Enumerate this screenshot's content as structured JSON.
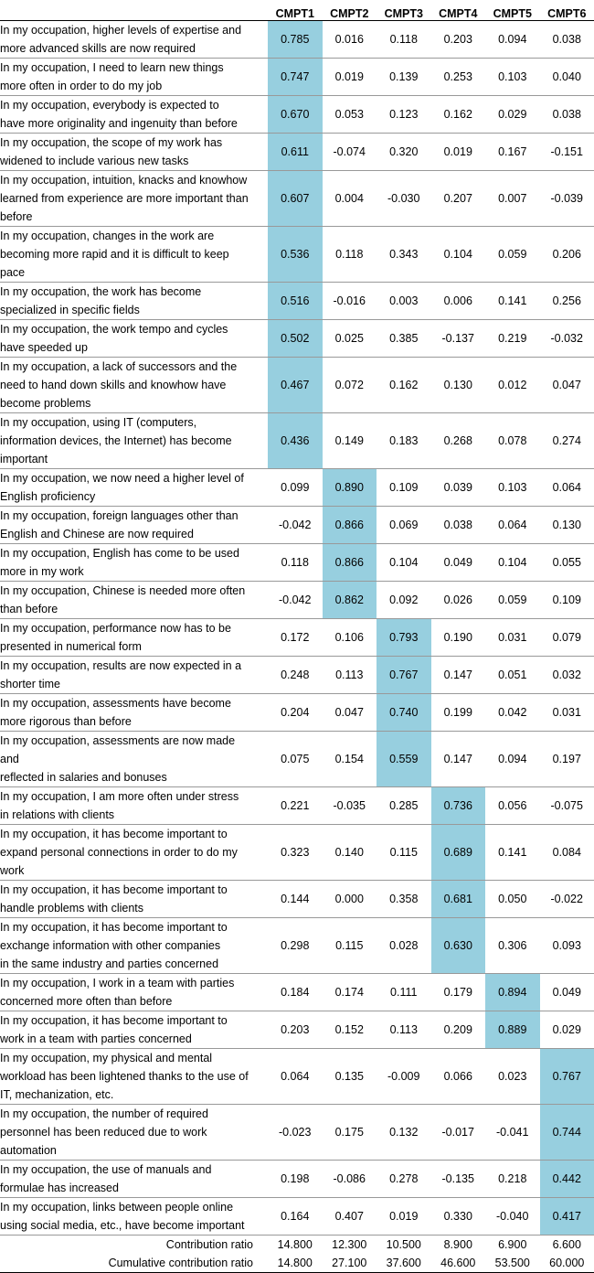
{
  "table": {
    "columns": [
      "CMPT1",
      "CMPT2",
      "CMPT3",
      "CMPT4",
      "CMPT5",
      "CMPT6"
    ],
    "rows": [
      {
        "label": [
          "In my occupation, higher levels of expertise and",
          "more advanced skills are now required"
        ],
        "values": [
          "0.785",
          "0.016",
          "0.118",
          "0.203",
          "0.094",
          "0.038"
        ],
        "highlight": 0
      },
      {
        "label": [
          "In my occupation, I need to learn new things",
          "more often in order to do my job"
        ],
        "values": [
          "0.747",
          "0.019",
          "0.139",
          "0.253",
          "0.103",
          "0.040"
        ],
        "highlight": 0
      },
      {
        "label": [
          "In my occupation, everybody is expected to",
          "have more originality and ingenuity than before"
        ],
        "values": [
          "0.670",
          "0.053",
          "0.123",
          "0.162",
          "0.029",
          "0.038"
        ],
        "highlight": 0
      },
      {
        "label": [
          "In my occupation, the scope of my work has",
          "widened to include various new tasks"
        ],
        "values": [
          "0.611",
          "-0.074",
          "0.320",
          "0.019",
          "0.167",
          "-0.151"
        ],
        "highlight": 0
      },
      {
        "label": [
          "In my occupation, intuition, knacks and knowhow",
          "learned from experience are more important than",
          "before"
        ],
        "values": [
          "0.607",
          "0.004",
          "-0.030",
          "0.207",
          "0.007",
          "-0.039"
        ],
        "highlight": 0
      },
      {
        "label": [
          "In my occupation, changes in the work are",
          "becoming more rapid and it is difficult to keep",
          "pace"
        ],
        "values": [
          "0.536",
          "0.118",
          "0.343",
          "0.104",
          "0.059",
          "0.206"
        ],
        "highlight": 0
      },
      {
        "label": [
          "In my occupation, the work has become",
          "specialized in specific fields"
        ],
        "values": [
          "0.516",
          "-0.016",
          "0.003",
          "0.006",
          "0.141",
          "0.256"
        ],
        "highlight": 0
      },
      {
        "label": [
          "In my occupation, the work tempo and cycles",
          "have speeded up"
        ],
        "values": [
          "0.502",
          "0.025",
          "0.385",
          "-0.137",
          "0.219",
          "-0.032"
        ],
        "highlight": 0
      },
      {
        "label": [
          "In my occupation, a lack of successors and the",
          "need to hand down skills and knowhow have",
          "become problems"
        ],
        "values": [
          "0.467",
          "0.072",
          "0.162",
          "0.130",
          "0.012",
          "0.047"
        ],
        "highlight": 0
      },
      {
        "label": [
          "In my occupation, using IT (computers,",
          "information devices, the Internet) has become",
          "important"
        ],
        "values": [
          "0.436",
          "0.149",
          "0.183",
          "0.268",
          "0.078",
          "0.274"
        ],
        "highlight": 0
      },
      {
        "label": [
          "In my occupation, we now need a higher level of",
          "English proficiency"
        ],
        "values": [
          "0.099",
          "0.890",
          "0.109",
          "0.039",
          "0.103",
          "0.064"
        ],
        "highlight": 1
      },
      {
        "label": [
          "In my occupation, foreign languages other than",
          "English and Chinese are now required"
        ],
        "values": [
          "-0.042",
          "0.866",
          "0.069",
          "0.038",
          "0.064",
          "0.130"
        ],
        "highlight": 1
      },
      {
        "label": [
          "In my occupation, English has come to be used",
          "more in my work"
        ],
        "values": [
          "0.118",
          "0.866",
          "0.104",
          "0.049",
          "0.104",
          "0.055"
        ],
        "highlight": 1
      },
      {
        "label": [
          "In my occupation, Chinese is needed more often",
          "than before"
        ],
        "values": [
          "-0.042",
          "0.862",
          "0.092",
          "0.026",
          "0.059",
          "0.109"
        ],
        "highlight": 1
      },
      {
        "label": [
          "In my occupation, performance now has to be",
          "presented in numerical form"
        ],
        "values": [
          "0.172",
          "0.106",
          "0.793",
          "0.190",
          "0.031",
          "0.079"
        ],
        "highlight": 2
      },
      {
        "label": [
          "In my occupation, results are now expected in a",
          "shorter time"
        ],
        "values": [
          "0.248",
          "0.113",
          "0.767",
          "0.147",
          "0.051",
          "0.032"
        ],
        "highlight": 2
      },
      {
        "label": [
          "In my occupation, assessments have become",
          "more rigorous than before"
        ],
        "values": [
          "0.204",
          "0.047",
          "0.740",
          "0.199",
          "0.042",
          "0.031"
        ],
        "highlight": 2
      },
      {
        "label": [
          "In my occupation, assessments are now made",
          "and",
          "reflected in salaries and bonuses"
        ],
        "values": [
          "0.075",
          "0.154",
          "0.559",
          "0.147",
          "0.094",
          "0.197"
        ],
        "highlight": 2
      },
      {
        "label": [
          "In my occupation, I am more often under stress",
          "in relations with clients"
        ],
        "values": [
          "0.221",
          "-0.035",
          "0.285",
          "0.736",
          "0.056",
          "-0.075"
        ],
        "highlight": 3
      },
      {
        "label": [
          "In my occupation, it has become important to",
          "expand personal connections in order to do my",
          "work"
        ],
        "values": [
          "0.323",
          "0.140",
          "0.115",
          "0.689",
          "0.141",
          "0.084"
        ],
        "highlight": 3
      },
      {
        "label": [
          "In my occupation, it has become important to",
          "handle problems with clients"
        ],
        "values": [
          "0.144",
          "0.000",
          "0.358",
          "0.681",
          "0.050",
          "-0.022"
        ],
        "highlight": 3
      },
      {
        "label": [
          "In my occupation, it has become important to",
          "exchange information with other companies",
          "in the same industry and parties concerned"
        ],
        "values": [
          "0.298",
          "0.115",
          "0.028",
          "0.630",
          "0.306",
          "0.093"
        ],
        "highlight": 3
      },
      {
        "label": [
          "In my occupation, I work in a team with parties",
          "concerned more often than before"
        ],
        "values": [
          "0.184",
          "0.174",
          "0.111",
          "0.179",
          "0.894",
          "0.049"
        ],
        "highlight": 4
      },
      {
        "label": [
          "In my occupation, it has become important to",
          "work in a team with parties concerned"
        ],
        "values": [
          "0.203",
          "0.152",
          "0.113",
          "0.209",
          "0.889",
          "0.029"
        ],
        "highlight": 4
      },
      {
        "label": [
          "In my occupation, my physical and mental",
          "workload has been lightened thanks to the use of",
          "IT, mechanization, etc."
        ],
        "values": [
          "0.064",
          "0.135",
          "-0.009",
          "0.066",
          "0.023",
          "0.767"
        ],
        "highlight": 5
      },
      {
        "label": [
          "In my occupation, the number of required",
          "personnel has been reduced due to work",
          "automation"
        ],
        "values": [
          "-0.023",
          "0.175",
          "0.132",
          "-0.017",
          "-0.041",
          "0.744"
        ],
        "highlight": 5
      },
      {
        "label": [
          "In my occupation, the use of manuals and",
          "formulae has increased"
        ],
        "values": [
          "0.198",
          "-0.086",
          "0.278",
          "-0.135",
          "0.218",
          "0.442"
        ],
        "highlight": 5
      },
      {
        "label": [
          "In my occupation, links between people online",
          "using social media, etc., have become important"
        ],
        "values": [
          "0.164",
          "0.407",
          "0.019",
          "0.330",
          "-0.040",
          "0.417"
        ],
        "highlight": 5
      }
    ],
    "summary": [
      {
        "label": "Contribution ratio",
        "values": [
          "14.800",
          "12.300",
          "10.500",
          "8.900",
          "6.900",
          "6.600"
        ]
      },
      {
        "label": "Cumulative contribution ratio",
        "values": [
          "14.800",
          "27.100",
          "37.600",
          "46.600",
          "53.500",
          "60.000"
        ]
      }
    ],
    "highlight_color": "#97cfdf"
  }
}
